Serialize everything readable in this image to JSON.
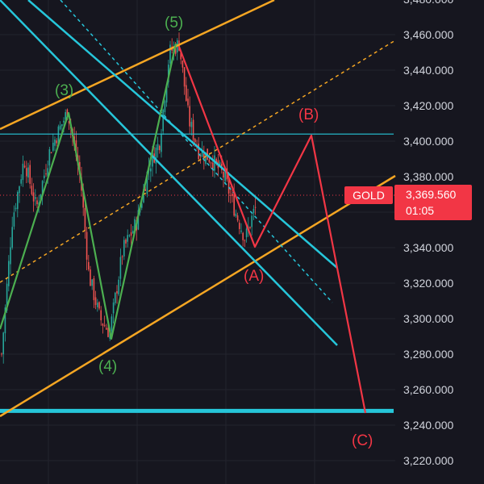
{
  "symbol": "GOLD",
  "last_price": "3,369.560",
  "countdown": "01:05",
  "colors": {
    "background": "#16161f",
    "grid": "#23242e",
    "up_candle": "#26a69a",
    "down_candle": "#ef5350",
    "impulse_wave": "#4caf50",
    "correction_wave": "#f23645",
    "orange_channel": "#f5a623",
    "cyan_channel": "#26c6da",
    "price_tag": "#f23645"
  },
  "chart_data": {
    "type": "candlestick",
    "y_axis": {
      "side": "right",
      "range": [
        3210,
        3485
      ],
      "ticks": [
        "3,220.000",
        "3,240.000",
        "3,260.000",
        "3,280.000",
        "3,300.000",
        "3,320.000",
        "3,340.000",
        "3,360.000",
        "3,380.000",
        "3,400.000",
        "3,420.000",
        "3,440.000",
        "3,460.000",
        "3,480.000"
      ]
    },
    "current_price_line": 3369.56,
    "waves": {
      "impulse": [
        {
          "label": "(3)",
          "price": 3417
        },
        {
          "label": "(4)",
          "price": 3289
        },
        {
          "label": "(5)",
          "price": 3456
        }
      ],
      "correction": [
        {
          "label": "(A)",
          "price": 3338
        },
        {
          "label": "(B)",
          "price": 3404
        },
        {
          "label": "(C)",
          "price": 3248
        }
      ]
    },
    "horizontal_levels": [
      {
        "price": 3404,
        "style": "thin",
        "color": "cyan"
      },
      {
        "price": 3248,
        "style": "thick",
        "color": "cyan"
      }
    ]
  }
}
